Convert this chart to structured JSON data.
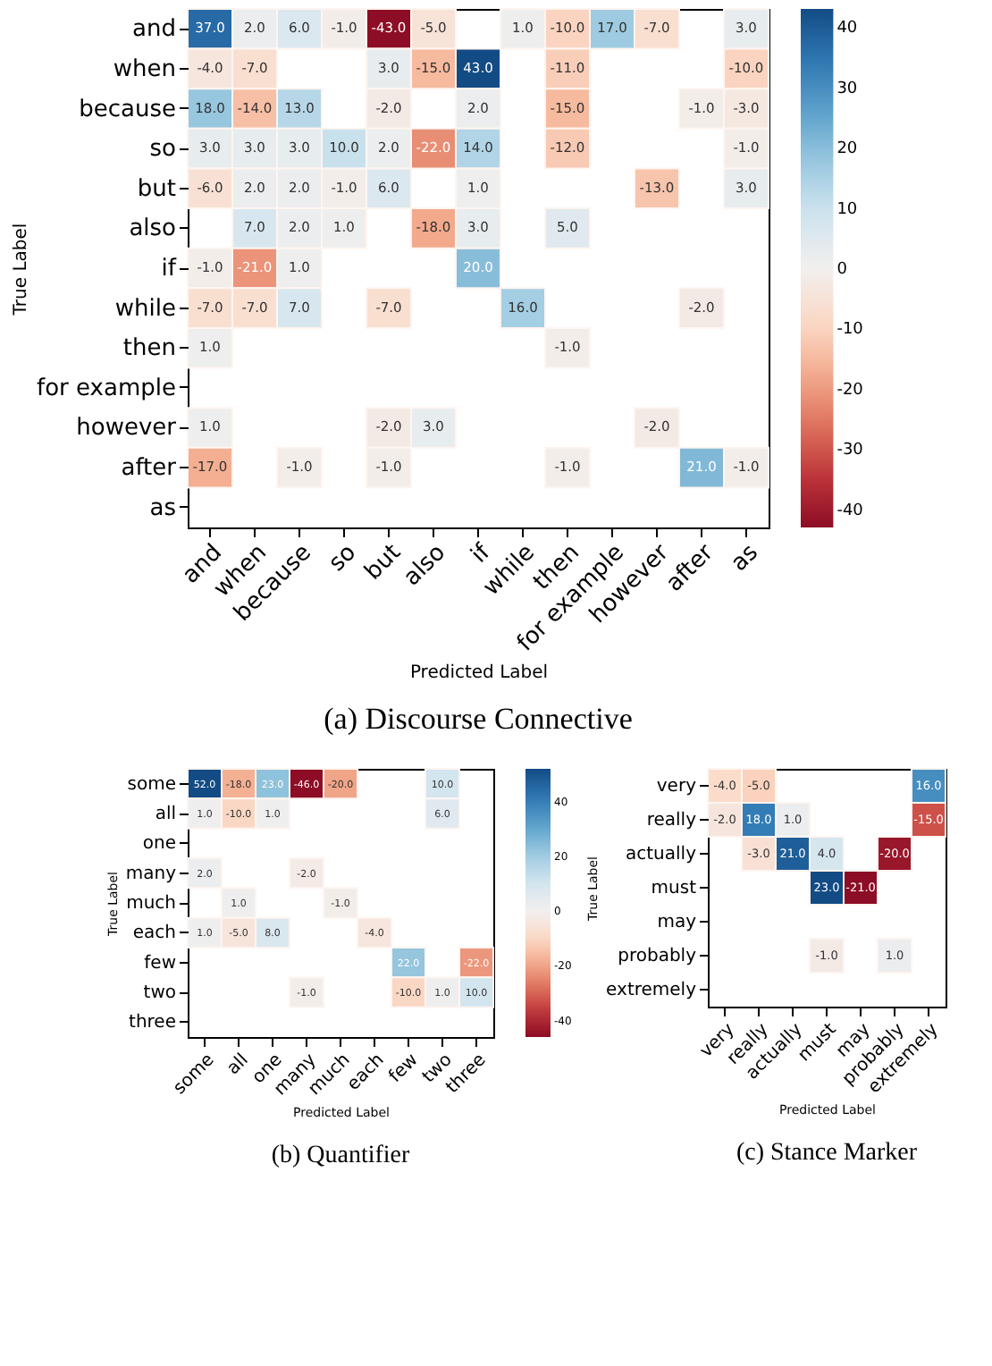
{
  "chart_data": [
    {
      "type": "heatmap",
      "title": "(a) Discourse Connective",
      "xlabel": "Predicted Label",
      "ylabel": "True Label",
      "categories": [
        "and",
        "when",
        "because",
        "so",
        "but",
        "also",
        "if",
        "while",
        "then",
        "for example",
        "however",
        "after",
        "as"
      ],
      "y_categories": [
        "and",
        "when",
        "because",
        "so",
        "but",
        "also",
        "if",
        "while",
        "then",
        "for example",
        "however",
        "after",
        "as"
      ],
      "cells": [
        [
          37,
          2,
          6,
          -1,
          -43,
          -5,
          null,
          1,
          -10,
          17,
          -7,
          null,
          3
        ],
        [
          -4,
          -7,
          null,
          null,
          3,
          -15,
          43,
          null,
          -11,
          null,
          null,
          null,
          -10
        ],
        [
          18,
          -14,
          13,
          null,
          -2,
          null,
          2,
          null,
          -15,
          null,
          null,
          -1,
          -3
        ],
        [
          3,
          3,
          3,
          10,
          2,
          -22,
          14,
          null,
          -12,
          null,
          null,
          null,
          -1
        ],
        [
          -6,
          2,
          2,
          -1,
          6,
          null,
          1,
          null,
          null,
          null,
          -13,
          null,
          3
        ],
        [
          null,
          7,
          2,
          1,
          null,
          -18,
          3,
          null,
          5,
          null,
          null,
          null,
          null
        ],
        [
          -1,
          -21,
          1,
          null,
          null,
          null,
          20,
          null,
          null,
          null,
          null,
          null,
          null
        ],
        [
          -7,
          -7,
          7,
          null,
          -7,
          null,
          null,
          16,
          null,
          null,
          null,
          -2,
          null
        ],
        [
          1,
          null,
          null,
          null,
          null,
          null,
          null,
          null,
          -1,
          null,
          null,
          null,
          null
        ],
        [
          null,
          null,
          null,
          null,
          null,
          null,
          null,
          null,
          null,
          null,
          null,
          null,
          null
        ],
        [
          1,
          null,
          null,
          null,
          -2,
          3,
          null,
          null,
          null,
          null,
          -2,
          null,
          null
        ],
        [
          -17,
          null,
          -1,
          null,
          -1,
          null,
          null,
          null,
          -1,
          null,
          null,
          21,
          -1
        ],
        [
          null,
          null,
          null,
          null,
          null,
          null,
          null,
          null,
          null,
          null,
          null,
          null,
          null
        ]
      ],
      "cell_labels": [
        [
          "37.0",
          "2.0",
          "6.0",
          "-1.0",
          "-43.0",
          "-5.0",
          null,
          "1.0",
          "-10.0",
          "17.0",
          "-7.0",
          null,
          "3.0"
        ],
        [
          "-4.0",
          "-7.0",
          null,
          null,
          "3.0",
          "-15.0",
          "43.0",
          null,
          "-11.0",
          null,
          null,
          null,
          "-10.0"
        ],
        [
          "18.0",
          "-14.0",
          "13.0",
          null,
          "-2.0",
          null,
          "2.0",
          null,
          "-15.0",
          null,
          null,
          "-1.0",
          "-3.0"
        ],
        [
          "3.0",
          "3.0",
          "3.0",
          "10.0",
          "2.0",
          "-22.0",
          "14.0",
          null,
          "-12.0",
          null,
          null,
          null,
          "-1.0"
        ],
        [
          "-6.0",
          "2.0",
          "2.0",
          "-1.0",
          "6.0",
          null,
          "1.0",
          null,
          null,
          null,
          "-13.0",
          null,
          "3.0"
        ],
        [
          null,
          "7.0",
          "2.0",
          "1.0",
          null,
          "-18.0",
          "3.0",
          null,
          "5.0",
          null,
          null,
          null,
          null
        ],
        [
          "-1.0",
          "-21.0",
          "1.0",
          null,
          null,
          null,
          "20.0",
          null,
          null,
          null,
          null,
          null,
          null
        ],
        [
          "-7.0",
          "-7.0",
          "7.0",
          null,
          "-7.0",
          null,
          null,
          "16.0",
          null,
          null,
          null,
          "-2.0",
          null
        ],
        [
          "1.0",
          null,
          null,
          null,
          null,
          null,
          null,
          null,
          "-1.0",
          null,
          null,
          null,
          null
        ],
        [
          null,
          null,
          null,
          null,
          null,
          null,
          null,
          null,
          null,
          null,
          null,
          null,
          null
        ],
        [
          "1.0",
          null,
          null,
          null,
          "-2.0",
          "3.0",
          null,
          null,
          null,
          null,
          "-2.0",
          null,
          null
        ],
        [
          "-17.0",
          null,
          "-1.0",
          null,
          "-1.0",
          null,
          null,
          null,
          "-1.0",
          null,
          null,
          "21.0",
          "-1.0"
        ],
        [
          null,
          null,
          null,
          null,
          null,
          null,
          null,
          null,
          null,
          null,
          null,
          null,
          null
        ]
      ],
      "clim": [
        -43,
        43
      ],
      "cticks": [
        -40,
        -30,
        -20,
        -10,
        0,
        10,
        20,
        30,
        40
      ]
    },
    {
      "type": "heatmap",
      "title": "(b) Quantifier",
      "xlabel": "Predicted Label",
      "ylabel": "True Label",
      "categories": [
        "some",
        "all",
        "one",
        "many",
        "much",
        "each",
        "few",
        "two",
        "three"
      ],
      "y_categories": [
        "some",
        "all",
        "one",
        "many",
        "much",
        "each",
        "few",
        "two",
        "three"
      ],
      "cells": [
        [
          52,
          -18,
          23,
          -46,
          -20,
          null,
          null,
          10,
          null
        ],
        [
          1,
          -10,
          1,
          null,
          null,
          null,
          null,
          6,
          null
        ],
        [
          null,
          null,
          null,
          null,
          null,
          null,
          null,
          null,
          null
        ],
        [
          2,
          null,
          null,
          -2,
          null,
          null,
          null,
          null,
          null
        ],
        [
          null,
          1,
          null,
          null,
          -1,
          null,
          null,
          null,
          null
        ],
        [
          1,
          -5,
          8,
          null,
          null,
          -4,
          null,
          null,
          null
        ],
        [
          null,
          null,
          null,
          null,
          null,
          null,
          22,
          null,
          -22
        ],
        [
          null,
          null,
          null,
          -1,
          null,
          null,
          -10,
          1,
          10
        ],
        [
          null,
          null,
          null,
          null,
          null,
          null,
          null,
          null,
          null
        ]
      ],
      "cell_labels": [
        [
          "52.0",
          "-18.0",
          "23.0",
          "-46.0",
          "-20.0",
          null,
          null,
          "10.0",
          null
        ],
        [
          "1.0",
          "-10.0",
          "1.0",
          null,
          null,
          null,
          null,
          "6.0",
          null
        ],
        [
          null,
          null,
          null,
          null,
          null,
          null,
          null,
          null,
          null
        ],
        [
          "2.0",
          null,
          null,
          "-2.0",
          null,
          null,
          null,
          null,
          null
        ],
        [
          null,
          "1.0",
          null,
          null,
          "-1.0",
          null,
          null,
          null,
          null
        ],
        [
          "1.0",
          "-5.0",
          "8.0",
          null,
          null,
          "-4.0",
          null,
          null,
          null
        ],
        [
          null,
          null,
          null,
          null,
          null,
          null,
          "22.0",
          null,
          "-22.0"
        ],
        [
          null,
          null,
          null,
          "-1.0",
          null,
          null,
          "-10.0",
          "1.0",
          "10.0"
        ],
        [
          null,
          null,
          null,
          null,
          null,
          null,
          null,
          null,
          null
        ]
      ],
      "clim": [
        -46,
        52
      ],
      "cticks": [
        -40,
        -20,
        0,
        20,
        40
      ]
    },
    {
      "type": "heatmap",
      "title": "(c) Stance Marker",
      "xlabel": "Predicted Label",
      "ylabel": "True Label",
      "categories": [
        "very",
        "really",
        "actually",
        "must",
        "may",
        "probably",
        "extremely"
      ],
      "y_categories": [
        "very",
        "really",
        "actually",
        "must",
        "may",
        "probably",
        "extremely"
      ],
      "cells": [
        [
          -4,
          -5,
          null,
          null,
          null,
          null,
          16
        ],
        [
          -2,
          18,
          1,
          null,
          null,
          null,
          -15
        ],
        [
          null,
          -3,
          21,
          4,
          null,
          -20,
          null
        ],
        [
          null,
          null,
          null,
          23,
          -21,
          null,
          null
        ],
        [
          null,
          null,
          null,
          null,
          null,
          null,
          null
        ],
        [
          null,
          null,
          null,
          -1,
          null,
          1,
          null
        ],
        [
          null,
          null,
          null,
          null,
          null,
          null,
          null
        ]
      ],
      "cell_labels": [
        [
          "-4.0",
          "-5.0",
          null,
          null,
          null,
          null,
          "16.0"
        ],
        [
          "-2.0",
          "18.0",
          "1.0",
          null,
          null,
          null,
          "-15.0"
        ],
        [
          null,
          "-3.0",
          "21.0",
          "4.0",
          null,
          "-20.0",
          null
        ],
        [
          null,
          null,
          null,
          "23.0",
          "-21.0",
          null,
          null
        ],
        [
          null,
          null,
          null,
          null,
          null,
          null,
          null
        ],
        [
          null,
          null,
          null,
          "-1.0",
          null,
          "1.0",
          null
        ],
        [
          null,
          null,
          null,
          null,
          null,
          null,
          null
        ]
      ]
    }
  ]
}
